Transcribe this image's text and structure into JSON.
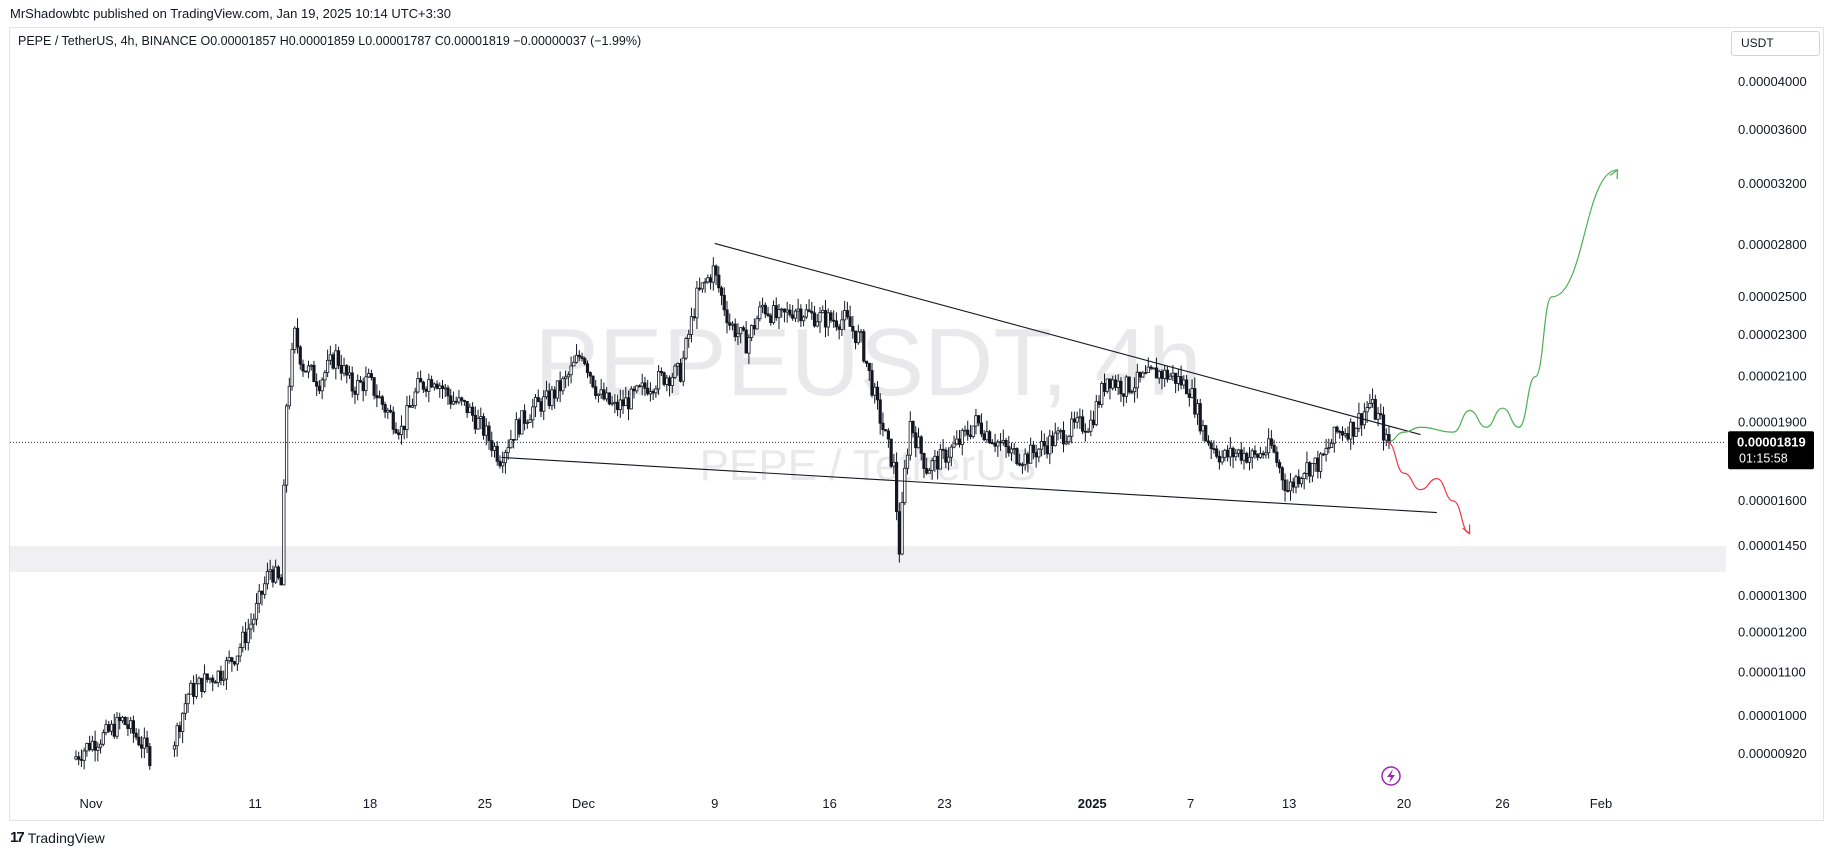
{
  "header": {
    "publish_line": "MrShadowbtc published on TradingView.com, Jan 19, 2025 10:14 UTC+3:30"
  },
  "legend": {
    "symbol_line": "PEPE / TetherUS, 4h, BINANCE  O0.00001857  H0.00001859  L0.00001787  C0.00001819  −0.00000037 (−1.99%)"
  },
  "currency_selector": {
    "label": "USDT"
  },
  "price_tag": {
    "price": "0.00001819",
    "countdown": "01:15:58"
  },
  "watermark": {
    "symbol": "PEPEUSDT, 4h",
    "name": "PEPE / TetherUS"
  },
  "footer": {
    "brand": "TradingView"
  },
  "colors": {
    "candles": "#131722",
    "bullish_projection": "#4caf50",
    "bearish_projection": "#f23645",
    "demand_zone": "#f0f0f2",
    "price_tag": "#000000"
  },
  "chart_data": {
    "type": "candlestick",
    "symbol": "PEPE / TetherUS",
    "timeframe": "4h",
    "exchange": "BINANCE",
    "y_scale": "log",
    "ylim": [
      8.5e-06,
      4.4e-06
    ],
    "y_ticks": [
      "0.00004000",
      "0.00003600",
      "0.00003200",
      "0.00002800",
      "0.00002500",
      "0.00002300",
      "0.00002100",
      "0.00001900",
      "0.00001600",
      "0.00001450",
      "0.00001300",
      "0.00001200",
      "0.00001100",
      "0.00001000",
      "0.00000920"
    ],
    "x_ticks": [
      {
        "label": "Nov",
        "date": "2024-11-01"
      },
      {
        "label": "11",
        "date": "2024-11-11"
      },
      {
        "label": "18",
        "date": "2024-11-18"
      },
      {
        "label": "25",
        "date": "2024-11-25"
      },
      {
        "label": "Dec",
        "date": "2024-12-01"
      },
      {
        "label": "9",
        "date": "2024-12-09"
      },
      {
        "label": "16",
        "date": "2024-12-16"
      },
      {
        "label": "23",
        "date": "2024-12-23"
      },
      {
        "label": "2025",
        "date": "2025-01-01",
        "bold": true
      },
      {
        "label": "7",
        "date": "2025-01-07"
      },
      {
        "label": "13",
        "date": "2025-01-13"
      },
      {
        "label": "20",
        "date": "2025-01-20"
      },
      {
        "label": "26",
        "date": "2025-01-26"
      },
      {
        "label": "Feb",
        "date": "2025-02-01"
      }
    ],
    "last_price": 1.819e-05,
    "price_path": [
      [
        "2024-10-31",
        9.1e-06
      ],
      [
        "2024-11-01",
        9.4e-06
      ],
      [
        "2024-11-02",
        9.6e-06
      ],
      [
        "2024-11-03",
        9.9e-06
      ],
      [
        "2024-11-04",
        9.5e-06
      ],
      [
        "2024-11-05",
        9e-06
      ],
      [
        "2024-11-06",
        9.3e-06
      ],
      [
        "2024-11-07",
        1.05e-05
      ],
      [
        "2024-11-08",
        1.08e-05
      ],
      [
        "2024-11-09",
        1.1e-05
      ],
      [
        "2024-11-10",
        1.15e-05
      ],
      [
        "2024-11-11",
        1.24e-05
      ],
      [
        "2024-11-12",
        1.38e-05
      ],
      [
        "2024-11-12T16",
        1.33e-05
      ],
      [
        "2024-11-13",
        1.98e-05
      ],
      [
        "2024-11-13T12",
        2.3e-05
      ],
      [
        "2024-11-14",
        2.15e-05
      ],
      [
        "2024-11-15",
        2.08e-05
      ],
      [
        "2024-11-16",
        2.2e-05
      ],
      [
        "2024-11-17",
        2.05e-05
      ],
      [
        "2024-11-18",
        2.08e-05
      ],
      [
        "2024-11-19",
        1.96e-05
      ],
      [
        "2024-11-20",
        1.87e-05
      ],
      [
        "2024-11-21",
        2.05e-05
      ],
      [
        "2024-11-22",
        2.1e-05
      ],
      [
        "2024-11-23",
        2e-05
      ],
      [
        "2024-11-24",
        1.96e-05
      ],
      [
        "2024-11-25",
        1.87e-05
      ],
      [
        "2024-11-26",
        1.76e-05
      ],
      [
        "2024-11-27",
        1.88e-05
      ],
      [
        "2024-11-28",
        1.96e-05
      ],
      [
        "2024-11-29",
        2e-05
      ],
      [
        "2024-11-30",
        2.08e-05
      ],
      [
        "2024-12-01",
        2.22e-05
      ],
      [
        "2024-12-02",
        2.02e-05
      ],
      [
        "2024-12-03",
        1.96e-05
      ],
      [
        "2024-12-04",
        2e-05
      ],
      [
        "2024-12-05",
        2.06e-05
      ],
      [
        "2024-12-06",
        2.1e-05
      ],
      [
        "2024-12-07",
        2.12e-05
      ],
      [
        "2024-12-08",
        2.5e-05
      ],
      [
        "2024-12-09",
        2.65e-05
      ],
      [
        "2024-12-10",
        2.36e-05
      ],
      [
        "2024-12-11",
        2.26e-05
      ],
      [
        "2024-12-12",
        2.45e-05
      ],
      [
        "2024-12-13",
        2.38e-05
      ],
      [
        "2024-12-14",
        2.44e-05
      ],
      [
        "2024-12-15",
        2.4e-05
      ],
      [
        "2024-12-16",
        2.38e-05
      ],
      [
        "2024-12-17",
        2.38e-05
      ],
      [
        "2024-12-18",
        2.27e-05
      ],
      [
        "2024-12-19",
        1.96e-05
      ],
      [
        "2024-12-20",
        1.72e-05
      ],
      [
        "2024-12-20T08",
        1.44e-05
      ],
      [
        "2024-12-20T16",
        1.7e-05
      ],
      [
        "2024-12-21",
        1.9e-05
      ],
      [
        "2024-12-22",
        1.72e-05
      ],
      [
        "2024-12-23",
        1.76e-05
      ],
      [
        "2024-12-24",
        1.82e-05
      ],
      [
        "2024-12-25",
        1.9e-05
      ],
      [
        "2024-12-26",
        1.84e-05
      ],
      [
        "2024-12-27",
        1.78e-05
      ],
      [
        "2024-12-28",
        1.76e-05
      ],
      [
        "2024-12-29",
        1.8e-05
      ],
      [
        "2024-12-30",
        1.84e-05
      ],
      [
        "2024-12-31",
        1.88e-05
      ],
      [
        "2025-01-01",
        1.9e-05
      ],
      [
        "2025-01-02",
        2.1e-05
      ],
      [
        "2025-01-03",
        2.05e-05
      ],
      [
        "2025-01-04",
        2.08e-05
      ],
      [
        "2025-01-05",
        2.12e-05
      ],
      [
        "2025-01-06",
        2.1e-05
      ],
      [
        "2025-01-07",
        2.05e-05
      ],
      [
        "2025-01-08",
        1.84e-05
      ],
      [
        "2025-01-09",
        1.76e-05
      ],
      [
        "2025-01-10",
        1.78e-05
      ],
      [
        "2025-01-11",
        1.76e-05
      ],
      [
        "2025-01-12",
        1.8e-05
      ],
      [
        "2025-01-13",
        1.64e-05
      ],
      [
        "2025-01-14",
        1.72e-05
      ],
      [
        "2025-01-15",
        1.74e-05
      ],
      [
        "2025-01-16",
        1.86e-05
      ],
      [
        "2025-01-17",
        1.88e-05
      ],
      [
        "2025-01-18",
        1.98e-05
      ],
      [
        "2025-01-18T16",
        1.9e-05
      ],
      [
        "2025-01-19",
        1.82e-05
      ]
    ],
    "drawings": {
      "upper_trendline": [
        [
          "2024-12-09",
          2.81e-05
        ],
        [
          "2025-01-21",
          1.85e-05
        ]
      ],
      "lower_trendline": [
        [
          "2024-11-26",
          1.76e-05
        ],
        [
          "2025-01-22",
          1.56e-05
        ]
      ],
      "demand_zone": [
        1.37e-05,
        1.45e-05
      ],
      "bullish_projection": [
        [
          "2025-01-19",
          1.82e-05
        ],
        [
          "2025-01-20",
          1.86e-05
        ],
        [
          "2025-01-21",
          1.88e-05
        ],
        [
          "2025-01-23",
          1.86e-05
        ],
        [
          "2025-01-24",
          1.95e-05
        ],
        [
          "2025-01-25",
          1.88e-05
        ],
        [
          "2025-01-26",
          1.96e-05
        ],
        [
          "2025-01-27",
          1.88e-05
        ],
        [
          "2025-01-28",
          2.1e-05
        ],
        [
          "2025-01-29",
          2.5e-05
        ],
        [
          "2025-02-02",
          3.3e-05
        ]
      ],
      "bearish_projection": [
        [
          "2025-01-19",
          1.82e-05
        ],
        [
          "2025-01-20",
          1.7e-05
        ],
        [
          "2025-01-21",
          1.64e-05
        ],
        [
          "2025-01-22",
          1.68e-05
        ],
        [
          "2025-01-23",
          1.6e-05
        ],
        [
          "2025-01-24",
          1.49e-05
        ]
      ]
    }
  }
}
